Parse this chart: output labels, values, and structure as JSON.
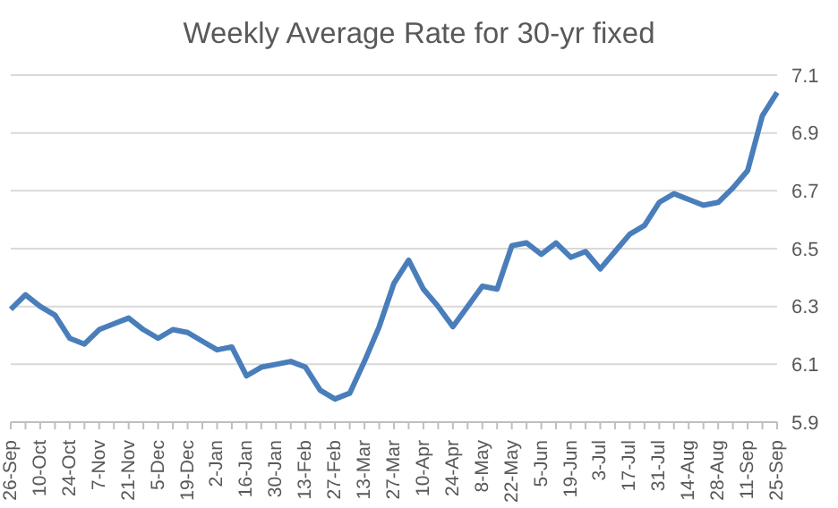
{
  "chart_data": {
    "type": "line",
    "title": "Weekly Average Rate for 30-yr fixed",
    "categories": [
      "26-Sep",
      null,
      "10-Oct",
      null,
      "24-Oct",
      null,
      "7-Nov",
      null,
      "21-Nov",
      null,
      "5-Dec",
      null,
      "19-Dec",
      null,
      "2-Jan",
      null,
      "16-Jan",
      null,
      "30-Jan",
      null,
      "13-Feb",
      null,
      "27-Feb",
      null,
      "13-Mar",
      null,
      "27-Mar",
      null,
      "10-Apr",
      null,
      "24-Apr",
      null,
      "8-May",
      null,
      "22-May",
      null,
      "5-Jun",
      null,
      "19-Jun",
      null,
      "3-Jul",
      null,
      "17-Jul",
      null,
      "31-Jul",
      null,
      "14-Aug",
      null,
      "28-Aug",
      null,
      "11-Sep",
      null,
      "25-Sep"
    ],
    "series": [
      {
        "color": "#4a7ebb",
        "values": [
          6.29,
          6.34,
          6.3,
          6.27,
          6.19,
          6.17,
          6.22,
          6.24,
          6.26,
          6.22,
          6.19,
          6.22,
          6.21,
          6.18,
          6.15,
          6.16,
          6.06,
          6.09,
          6.1,
          6.11,
          6.09,
          6.01,
          5.98,
          6.0,
          6.11,
          6.23,
          6.38,
          6.46,
          6.36,
          6.3,
          6.23,
          6.3,
          6.37,
          6.36,
          6.51,
          6.52,
          6.48,
          6.52,
          6.47,
          6.49,
          6.43,
          6.49,
          6.55,
          6.58,
          6.66,
          6.69,
          6.67,
          6.65,
          6.66,
          6.71,
          6.77,
          6.96,
          7.04
        ]
      }
    ],
    "ylim": [
      5.9,
      7.1
    ],
    "yticks": [
      5.9,
      6.1,
      6.3,
      6.5,
      6.7,
      6.9,
      7.1
    ],
    "grid": "y",
    "legend": false,
    "marker": "none",
    "line_style": "solid"
  }
}
